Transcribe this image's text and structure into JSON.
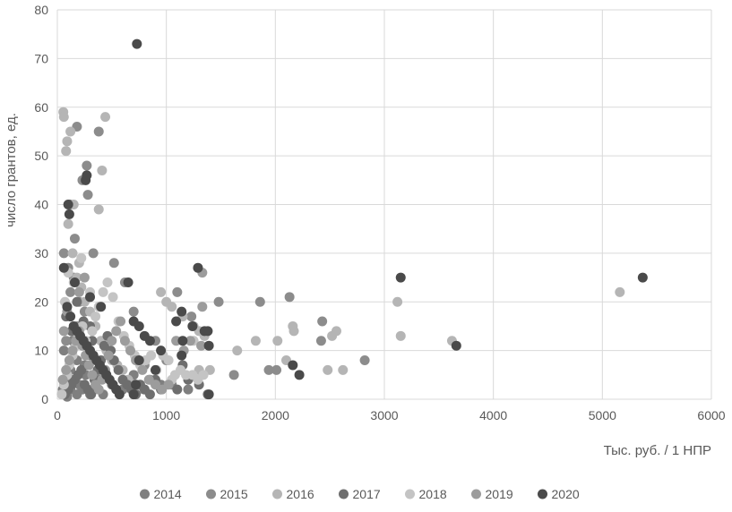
{
  "chart_data": {
    "type": "scatter",
    "title": "",
    "xlabel": "Тыс. руб. / 1 НПР",
    "ylabel": "число грантов, ед.",
    "xlim": [
      0,
      6000
    ],
    "ylim": [
      0,
      80
    ],
    "x_ticks": [
      0,
      1000,
      2000,
      3000,
      4000,
      5000,
      6000
    ],
    "y_ticks": [
      0,
      10,
      20,
      30,
      40,
      50,
      60,
      70,
      80
    ],
    "grid": true,
    "legend_position": "bottom",
    "series": [
      {
        "name": "2014",
        "color": "#7f7f7f",
        "points": [
          [
            50,
            2
          ],
          [
            80,
            1
          ],
          [
            100,
            3
          ],
          [
            120,
            2
          ],
          [
            150,
            4
          ],
          [
            180,
            1
          ],
          [
            200,
            3
          ],
          [
            230,
            2
          ],
          [
            260,
            5
          ],
          [
            300,
            1
          ],
          [
            340,
            2
          ],
          [
            380,
            4
          ],
          [
            420,
            1
          ],
          [
            120,
            6
          ],
          [
            180,
            8
          ],
          [
            90,
            0.5
          ],
          [
            250,
            7
          ],
          [
            310,
            9
          ],
          [
            500,
            3
          ],
          [
            600,
            2
          ],
          [
            700,
            5
          ],
          [
            800,
            2
          ],
          [
            850,
            4
          ],
          [
            950,
            3
          ],
          [
            1050,
            3
          ],
          [
            1200,
            2
          ],
          [
            60,
            10
          ],
          [
            140,
            12
          ]
        ]
      },
      {
        "name": "2015",
        "color": "#8c8c8c",
        "points": [
          [
            60,
            30
          ],
          [
            100,
            27
          ],
          [
            150,
            25
          ],
          [
            120,
            22
          ],
          [
            200,
            20
          ],
          [
            250,
            18
          ],
          [
            180,
            15
          ],
          [
            80,
            12
          ],
          [
            300,
            10
          ],
          [
            350,
            8
          ],
          [
            400,
            6
          ],
          [
            450,
            5
          ],
          [
            520,
            28
          ],
          [
            620,
            24
          ],
          [
            160,
            33
          ],
          [
            180,
            56
          ],
          [
            230,
            45
          ],
          [
            270,
            48
          ],
          [
            380,
            55
          ],
          [
            1100,
            22
          ],
          [
            1230,
            17
          ],
          [
            1480,
            20
          ],
          [
            1860,
            20
          ],
          [
            2130,
            21
          ],
          [
            2430,
            16
          ],
          [
            2420,
            12
          ],
          [
            2820,
            8
          ],
          [
            1620,
            5
          ],
          [
            1940,
            6
          ],
          [
            2010,
            6
          ],
          [
            700,
            18
          ],
          [
            800,
            7
          ],
          [
            900,
            12
          ],
          [
            1000,
            8
          ],
          [
            280,
            42
          ],
          [
            330,
            30
          ],
          [
            120,
            40
          ]
        ]
      },
      {
        "name": "2016",
        "color": "#b5b5b5",
        "points": [
          [
            55,
            59
          ],
          [
            60,
            58
          ],
          [
            90,
            53
          ],
          [
            80,
            51
          ],
          [
            120,
            55
          ],
          [
            150,
            40
          ],
          [
            100,
            36
          ],
          [
            140,
            30
          ],
          [
            200,
            28
          ],
          [
            180,
            25
          ],
          [
            220,
            23
          ],
          [
            250,
            20
          ],
          [
            300,
            18
          ],
          [
            350,
            15
          ],
          [
            400,
            12
          ],
          [
            450,
            10
          ],
          [
            500,
            8
          ],
          [
            550,
            7
          ],
          [
            600,
            6
          ],
          [
            650,
            4
          ],
          [
            700,
            3
          ],
          [
            750,
            2
          ],
          [
            380,
            39
          ],
          [
            410,
            47
          ],
          [
            440,
            58
          ],
          [
            950,
            22
          ],
          [
            1000,
            20
          ],
          [
            1050,
            19
          ],
          [
            1150,
            17
          ],
          [
            1250,
            15
          ],
          [
            1300,
            14
          ],
          [
            1350,
            13
          ],
          [
            1650,
            10
          ],
          [
            1820,
            12
          ],
          [
            2020,
            12
          ],
          [
            2160,
            15
          ],
          [
            2170,
            14
          ],
          [
            2520,
            13
          ],
          [
            2560,
            14
          ],
          [
            3120,
            20
          ],
          [
            3150,
            13
          ],
          [
            3620,
            12
          ],
          [
            5160,
            22
          ],
          [
            2480,
            6
          ],
          [
            2620,
            6
          ],
          [
            2100,
            8
          ],
          [
            1300,
            6
          ],
          [
            1400,
            6
          ]
        ]
      },
      {
        "name": "2017",
        "color": "#6e6e6e",
        "points": [
          [
            70,
            1
          ],
          [
            100,
            2
          ],
          [
            130,
            3
          ],
          [
            160,
            4
          ],
          [
            190,
            5
          ],
          [
            220,
            6
          ],
          [
            250,
            3
          ],
          [
            280,
            2
          ],
          [
            310,
            1
          ],
          [
            340,
            4
          ],
          [
            370,
            6
          ],
          [
            400,
            8
          ],
          [
            430,
            11
          ],
          [
            460,
            13
          ],
          [
            490,
            10
          ],
          [
            520,
            8
          ],
          [
            560,
            6
          ],
          [
            600,
            4
          ],
          [
            640,
            3
          ],
          [
            680,
            2
          ],
          [
            720,
            1
          ],
          [
            760,
            3
          ],
          [
            800,
            2
          ],
          [
            850,
            1
          ],
          [
            900,
            4
          ],
          [
            950,
            2
          ],
          [
            1100,
            2
          ],
          [
            1150,
            7
          ],
          [
            1200,
            4
          ],
          [
            1300,
            3
          ],
          [
            1380,
            1
          ],
          [
            300,
            15
          ],
          [
            320,
            12
          ],
          [
            180,
            20
          ],
          [
            240,
            16
          ],
          [
            80,
            17
          ],
          [
            130,
            14
          ]
        ]
      },
      {
        "name": "2018",
        "color": "#c4c4c4",
        "points": [
          [
            40,
            1
          ],
          [
            60,
            3
          ],
          [
            90,
            5
          ],
          [
            110,
            7
          ],
          [
            140,
            9
          ],
          [
            170,
            11
          ],
          [
            200,
            13
          ],
          [
            230,
            15
          ],
          [
            260,
            12
          ],
          [
            290,
            10
          ],
          [
            320,
            14
          ],
          [
            350,
            17
          ],
          [
            380,
            19
          ],
          [
            420,
            22
          ],
          [
            460,
            24
          ],
          [
            510,
            21
          ],
          [
            560,
            16
          ],
          [
            610,
            13
          ],
          [
            660,
            11
          ],
          [
            710,
            9
          ],
          [
            760,
            7
          ],
          [
            810,
            8
          ],
          [
            860,
            9
          ],
          [
            910,
            6
          ],
          [
            970,
            9
          ],
          [
            1020,
            8
          ],
          [
            1080,
            5
          ],
          [
            1130,
            6
          ],
          [
            1180,
            5
          ],
          [
            1240,
            5
          ],
          [
            1290,
            4
          ],
          [
            1340,
            5
          ],
          [
            150,
            24
          ],
          [
            100,
            26
          ],
          [
            70,
            20
          ],
          [
            220,
            29
          ],
          [
            300,
            22
          ],
          [
            1050,
            4
          ],
          [
            1250,
            12
          ]
        ]
      },
      {
        "name": "2019",
        "color": "#9c9c9c",
        "points": [
          [
            50,
            4
          ],
          [
            80,
            6
          ],
          [
            110,
            8
          ],
          [
            140,
            10
          ],
          [
            170,
            12
          ],
          [
            200,
            14
          ],
          [
            230,
            11
          ],
          [
            260,
            9
          ],
          [
            290,
            7
          ],
          [
            320,
            5
          ],
          [
            350,
            3
          ],
          [
            380,
            2
          ],
          [
            410,
            4
          ],
          [
            440,
            6
          ],
          [
            470,
            9
          ],
          [
            500,
            12
          ],
          [
            540,
            14
          ],
          [
            580,
            16
          ],
          [
            620,
            12
          ],
          [
            670,
            10
          ],
          [
            720,
            8
          ],
          [
            780,
            6
          ],
          [
            840,
            4
          ],
          [
            900,
            3
          ],
          [
            960,
            2
          ],
          [
            1020,
            3
          ],
          [
            1090,
            12
          ],
          [
            1160,
            10
          ],
          [
            1220,
            12
          ],
          [
            1320,
            11
          ],
          [
            1330,
            19
          ],
          [
            1330,
            26
          ],
          [
            90,
            18
          ],
          [
            60,
            14
          ],
          [
            200,
            22
          ],
          [
            250,
            25
          ]
        ]
      },
      {
        "name": "2020",
        "color": "#4a4a4a",
        "points": [
          [
            730,
            73
          ],
          [
            270,
            46
          ],
          [
            260,
            45
          ],
          [
            100,
            40
          ],
          [
            110,
            38
          ],
          [
            60,
            27
          ],
          [
            650,
            24
          ],
          [
            90,
            19
          ],
          [
            120,
            17
          ],
          [
            150,
            15
          ],
          [
            180,
            14
          ],
          [
            210,
            13
          ],
          [
            240,
            12
          ],
          [
            270,
            11
          ],
          [
            300,
            10
          ],
          [
            330,
            9
          ],
          [
            360,
            8
          ],
          [
            390,
            7
          ],
          [
            420,
            6
          ],
          [
            450,
            5
          ],
          [
            480,
            4
          ],
          [
            510,
            3
          ],
          [
            540,
            2
          ],
          [
            570,
            1
          ],
          [
            300,
            21
          ],
          [
            400,
            19
          ],
          [
            700,
            16
          ],
          [
            750,
            15
          ],
          [
            800,
            13
          ],
          [
            850,
            12
          ],
          [
            1090,
            16
          ],
          [
            1140,
            18
          ],
          [
            1150,
            12
          ],
          [
            1240,
            15
          ],
          [
            1290,
            27
          ],
          [
            1350,
            14
          ],
          [
            1390,
            11
          ],
          [
            1380,
            14
          ],
          [
            1390,
            1
          ],
          [
            160,
            24
          ],
          [
            3150,
            25
          ],
          [
            5370,
            25
          ],
          [
            3660,
            11
          ],
          [
            2160,
            7
          ],
          [
            2220,
            5
          ],
          [
            1140,
            9
          ],
          [
            900,
            6
          ],
          [
            950,
            10
          ],
          [
            750,
            8
          ],
          [
            700,
            1
          ],
          [
            720,
            3
          ]
        ]
      }
    ]
  }
}
